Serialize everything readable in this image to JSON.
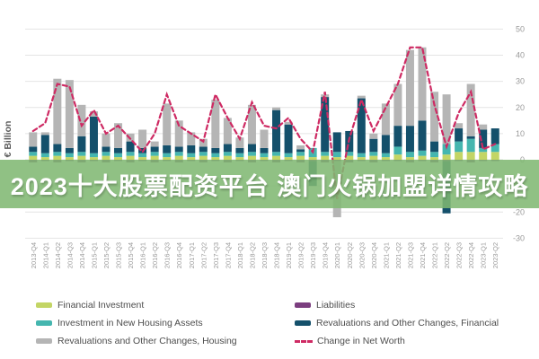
{
  "banner": {
    "text": "2023十大股票配资平台 澳门火锅加盟详情攻略"
  },
  "chart_data": {
    "type": "bar",
    "subtype": "stacked-bar-with-line",
    "title": "",
    "xlabel": "",
    "ylabel": "€ Billion",
    "ylim": [
      -30,
      50
    ],
    "yticks": [
      50,
      40,
      30,
      20,
      10,
      0,
      -10,
      -20,
      -30
    ],
    "grid": true,
    "legend_position": "bottom",
    "categories": [
      "2013-Q4",
      "2014-Q1",
      "2014-Q2",
      "2014-Q3",
      "2014-Q4",
      "2015-Q1",
      "2015-Q2",
      "2015-Q3",
      "2015-Q4",
      "2016-Q1",
      "2016-Q2",
      "2016-Q3",
      "2016-Q4",
      "2017-Q1",
      "2017-Q2",
      "2017-Q3",
      "2017-Q4",
      "2018-Q1",
      "2018-Q2",
      "2018-Q3",
      "2018-Q4",
      "2019-Q1",
      "2019-Q2",
      "2019-Q3",
      "2019-Q4",
      "2020-Q1",
      "2020-Q2",
      "2020-Q3",
      "2020-Q4",
      "2021-Q1",
      "2021-Q2",
      "2021-Q3",
      "2021-Q4",
      "2022-Q1",
      "2022-Q2",
      "2022-Q3",
      "2022-Q4",
      "2023-Q1",
      "2023-Q2"
    ],
    "series": [
      {
        "name": "Financial Investment",
        "color": "#c3d565",
        "values": [
          1.5,
          1,
          1.5,
          1,
          1.5,
          1,
          1.5,
          1,
          1.5,
          1,
          1.5,
          1,
          1.5,
          1,
          1.5,
          1,
          1.5,
          1,
          1.5,
          1,
          1.5,
          1,
          1.5,
          1,
          1.5,
          1,
          1.5,
          1,
          1.5,
          1,
          2,
          1,
          1.5,
          1,
          2,
          3,
          3,
          3,
          3
        ]
      },
      {
        "name": "Investment in New Housing Assets",
        "color": "#45b6af",
        "values": [
          1.5,
          1.5,
          1.5,
          1.5,
          1.5,
          1.5,
          1.5,
          1.5,
          1.5,
          1.5,
          1.5,
          1.5,
          1.5,
          1.5,
          1.5,
          1.5,
          1.5,
          1.5,
          1.5,
          1.5,
          1.5,
          1.5,
          1.5,
          3.5,
          1.5,
          2,
          1.5,
          1.5,
          1.5,
          1.5,
          3,
          2,
          2,
          2,
          4,
          4,
          5,
          1.5,
          3
        ]
      },
      {
        "name": "Liabilities",
        "color": "#7b3e7f",
        "values": [
          -1,
          -0.5,
          -1,
          -0.5,
          -1,
          -0.5,
          -1,
          -0.5,
          -1,
          -0.5,
          -1,
          -0.5,
          -1,
          -0.5,
          -1,
          -0.5,
          -1,
          -0.5,
          -1,
          -0.5,
          -1,
          -0.5,
          -1,
          -0.5,
          -1,
          -0.5,
          -1,
          -0.5,
          -1,
          -0.5,
          -0.5,
          -1,
          -0.5,
          -1,
          -0.5,
          -0.5,
          -1,
          -0.5,
          -0.5
        ]
      },
      {
        "name": "Revaluations and Other Changes, Financial",
        "color": "#14506b",
        "values": [
          2,
          7,
          3,
          2,
          6,
          14,
          2,
          2,
          4,
          2,
          2,
          3,
          2,
          3,
          2,
          2,
          3,
          2,
          3,
          2,
          16,
          11,
          1,
          -9.5,
          21,
          7.5,
          8,
          21,
          5,
          7,
          8,
          10,
          11.5,
          4,
          -20,
          5,
          1,
          7,
          6
        ]
      },
      {
        "name": "Revaluations and Other Changes, Housing",
        "color": "#b5b5b5",
        "values": [
          5.5,
          1,
          25,
          26,
          12,
          2,
          5,
          9.5,
          3,
          7,
          2,
          16,
          10,
          5,
          3,
          18.5,
          10,
          4,
          15,
          7,
          1,
          1,
          1.5,
          0,
          1,
          -21.5,
          0,
          1,
          2,
          12,
          16,
          29,
          28,
          19,
          19,
          2,
          20,
          2,
          0
        ]
      }
    ],
    "line_series": {
      "name": "Change in Net Worth",
      "color": "#ce2a63",
      "style": "dashed",
      "values": [
        11,
        14,
        29,
        28,
        13,
        19,
        10,
        13,
        8,
        3,
        10,
        25,
        13,
        10,
        7,
        25,
        16,
        8,
        22,
        13,
        12,
        16,
        8,
        3,
        26,
        -15,
        8,
        23,
        11,
        20,
        29,
        43,
        43,
        21,
        5,
        18,
        26,
        4,
        6
      ]
    }
  },
  "legend": {
    "left": [
      {
        "label": "Financial Investment",
        "color": "#c3d565",
        "swatch": "rect"
      },
      {
        "label": "Investment in New Housing Assets",
        "color": "#45b6af",
        "swatch": "rect"
      },
      {
        "label": "Revaluations and Other Changes, Housing",
        "color": "#b5b5b5",
        "swatch": "rect"
      }
    ],
    "right": [
      {
        "label": "Liabilities",
        "color": "#7b3e7f",
        "swatch": "rect"
      },
      {
        "label": "Revaluations and Other Changes, Financial",
        "color": "#14506b",
        "swatch": "rect"
      },
      {
        "label": "Change in Net Worth",
        "color": "#ce2a63",
        "swatch": "dashes"
      }
    ]
  }
}
